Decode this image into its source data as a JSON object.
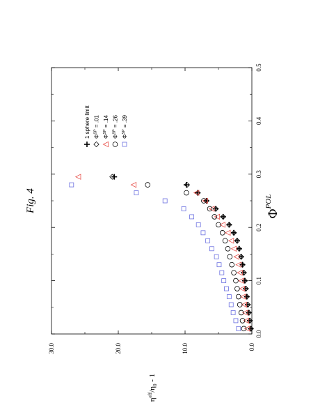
{
  "figure_label": "Fig. 4",
  "chart_data": {
    "type": "scatter",
    "orientation": "rotated 90° counter-clockwise",
    "xlabel_symbol": "Φ",
    "xlabel_sup": "POL",
    "ylabel_main": "η",
    "ylabel_sup": "eff",
    "ylabel_mid": "/η",
    "ylabel_sub": "0",
    "ylabel_tail": " - 1",
    "xlim": [
      0.0,
      0.5
    ],
    "ylim": [
      0.0,
      30.0
    ],
    "x_ticks": [
      "0.0",
      "0.1",
      "0.2",
      "0.3",
      "0.4",
      "0.5"
    ],
    "y_ticks": [
      "0.0",
      "10.0",
      "20.0",
      "30.0"
    ],
    "colors": {
      "black": "#000000",
      "red": "#e8504a",
      "blue": "#6a6fe0"
    },
    "series": [
      {
        "name": "1 sphere limit",
        "marker": "plus",
        "color": "#000000",
        "points": [
          [
            0.01,
            0.15
          ],
          [
            0.025,
            0.3
          ],
          [
            0.04,
            0.45
          ],
          [
            0.055,
            0.6
          ],
          [
            0.07,
            0.75
          ],
          [
            0.085,
            0.9
          ],
          [
            0.1,
            1.05
          ],
          [
            0.115,
            1.2
          ],
          [
            0.13,
            1.4
          ],
          [
            0.145,
            1.6
          ],
          [
            0.16,
            1.9
          ],
          [
            0.175,
            2.2
          ],
          [
            0.19,
            2.7
          ],
          [
            0.205,
            3.4
          ],
          [
            0.22,
            4.3
          ],
          [
            0.235,
            5.4
          ],
          [
            0.25,
            6.8
          ],
          [
            0.265,
            8.1
          ],
          [
            0.28,
            9.8
          ],
          [
            0.295,
            20.6
          ]
        ]
      },
      {
        "name": "0.01",
        "marker": "diamond",
        "color": "#000000",
        "points": [
          [
            0.01,
            0.15
          ],
          [
            0.025,
            0.3
          ],
          [
            0.04,
            0.45
          ],
          [
            0.055,
            0.6
          ],
          [
            0.07,
            0.75
          ],
          [
            0.085,
            0.9
          ],
          [
            0.1,
            1.05
          ],
          [
            0.115,
            1.2
          ],
          [
            0.13,
            1.4
          ],
          [
            0.145,
            1.6
          ],
          [
            0.16,
            1.9
          ],
          [
            0.175,
            2.2
          ],
          [
            0.19,
            2.7
          ],
          [
            0.205,
            3.4
          ],
          [
            0.22,
            4.3
          ],
          [
            0.235,
            5.4
          ],
          [
            0.25,
            6.8
          ],
          [
            0.265,
            8.1
          ],
          [
            0.28,
            9.7
          ],
          [
            0.295,
            20.9
          ]
        ]
      },
      {
        "name": ".14",
        "marker": "triangle",
        "color": "#e8504a",
        "points": [
          [
            0.01,
            0.7
          ],
          [
            0.025,
            0.85
          ],
          [
            0.04,
            1.0
          ],
          [
            0.055,
            1.15
          ],
          [
            0.07,
            1.3
          ],
          [
            0.085,
            1.45
          ],
          [
            0.1,
            1.6
          ],
          [
            0.115,
            1.8
          ],
          [
            0.13,
            2.0
          ],
          [
            0.145,
            2.3
          ],
          [
            0.16,
            2.7
          ],
          [
            0.175,
            3.1
          ],
          [
            0.19,
            3.6
          ],
          [
            0.205,
            4.4
          ],
          [
            0.22,
            5.2
          ],
          [
            0.235,
            6.0
          ],
          [
            0.25,
            7.0
          ],
          [
            0.265,
            8.3
          ],
          [
            0.28,
            17.7
          ],
          [
            0.295,
            26.0
          ]
        ]
      },
      {
        "name": ".26",
        "marker": "circle",
        "color": "#000000",
        "points": [
          [
            0.01,
            1.2
          ],
          [
            0.025,
            1.4
          ],
          [
            0.04,
            1.6
          ],
          [
            0.055,
            1.8
          ],
          [
            0.07,
            2.0
          ],
          [
            0.085,
            2.2
          ],
          [
            0.1,
            2.4
          ],
          [
            0.115,
            2.7
          ],
          [
            0.13,
            3.0
          ],
          [
            0.145,
            3.3
          ],
          [
            0.16,
            3.6
          ],
          [
            0.175,
            4.0
          ],
          [
            0.19,
            4.4
          ],
          [
            0.205,
            5.0
          ],
          [
            0.22,
            5.6
          ],
          [
            0.235,
            6.3
          ],
          [
            0.25,
            7.2
          ],
          [
            0.265,
            9.8
          ],
          [
            0.28,
            15.6
          ]
        ]
      },
      {
        "name": ".39",
        "marker": "square",
        "color": "#6a6fe0",
        "points": [
          [
            0.01,
            2.0
          ],
          [
            0.025,
            2.4
          ],
          [
            0.04,
            2.8
          ],
          [
            0.055,
            3.1
          ],
          [
            0.07,
            3.4
          ],
          [
            0.085,
            3.8
          ],
          [
            0.1,
            4.2
          ],
          [
            0.115,
            4.5
          ],
          [
            0.13,
            4.9
          ],
          [
            0.145,
            5.3
          ],
          [
            0.16,
            6.0
          ],
          [
            0.175,
            6.6
          ],
          [
            0.19,
            7.3
          ],
          [
            0.205,
            8.0
          ],
          [
            0.22,
            9.0
          ],
          [
            0.235,
            10.2
          ],
          [
            0.25,
            13.0
          ],
          [
            0.265,
            17.3
          ],
          [
            0.28,
            27.0
          ]
        ]
      }
    ],
    "legend": [
      {
        "marker": "plus",
        "color": "#000000",
        "label": "1 sphere limit"
      },
      {
        "marker": "diamond",
        "color": "#000000",
        "label": " = .01"
      },
      {
        "marker": "triangle",
        "color": "#e8504a",
        "label": " = .14"
      },
      {
        "marker": "circle",
        "color": "#000000",
        "label": " = .26"
      },
      {
        "marker": "square",
        "color": "#6a6fe0",
        "label": " = .39"
      }
    ],
    "legend_phi": "Φ",
    "legend_sup": "SP",
    "legend_placement": "upper-left of plot"
  }
}
